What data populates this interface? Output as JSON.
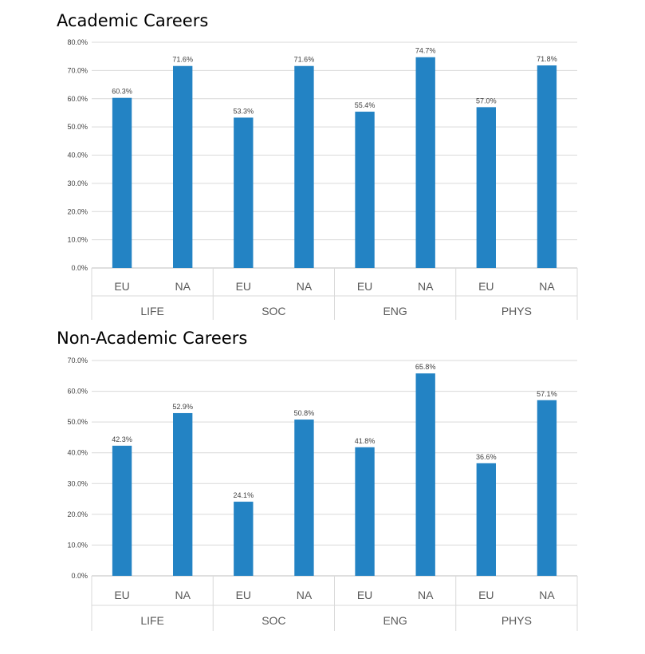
{
  "chart_data": [
    {
      "type": "bar",
      "title": "Academic Careers",
      "ylim": [
        0,
        80
      ],
      "yticks": [
        "0.0%",
        "10.0%",
        "20.0%",
        "30.0%",
        "40.0%",
        "50.0%",
        "60.0%",
        "70.0%",
        "80.0%"
      ],
      "groups": [
        "LIFE",
        "SOC",
        "ENG",
        "PHYS"
      ],
      "categories": [
        "EU",
        "NA",
        "EU",
        "NA",
        "EU",
        "NA",
        "EU",
        "NA"
      ],
      "values": [
        60.3,
        71.6,
        53.3,
        71.6,
        55.4,
        74.7,
        57.0,
        71.8
      ],
      "data_labels": [
        "60.3%",
        "71.6%",
        "53.3%",
        "71.6%",
        "55.4%",
        "74.7%",
        "57.0%",
        "71.8%"
      ],
      "bar_color": "#2383c4",
      "grid": true
    },
    {
      "type": "bar",
      "title": "Non-Academic Careers",
      "ylim": [
        0,
        70
      ],
      "yticks": [
        "0.0%",
        "10.0%",
        "20.0%",
        "30.0%",
        "40.0%",
        "50.0%",
        "60.0%",
        "70.0%"
      ],
      "groups": [
        "LIFE",
        "SOC",
        "ENG",
        "PHYS"
      ],
      "categories": [
        "EU",
        "NA",
        "EU",
        "NA",
        "EU",
        "NA",
        "EU",
        "NA"
      ],
      "values": [
        42.3,
        52.9,
        24.1,
        50.8,
        41.8,
        65.8,
        36.6,
        57.1
      ],
      "data_labels": [
        "42.3%",
        "52.9%",
        "24.1%",
        "50.8%",
        "41.8%",
        "65.8%",
        "36.6%",
        "57.1%"
      ],
      "bar_color": "#2383c4",
      "grid": true
    }
  ]
}
